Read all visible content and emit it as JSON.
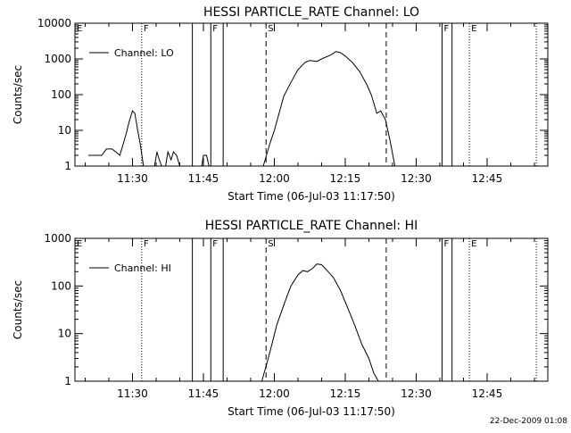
{
  "footer_timestamp": "22-Dec-2009 01:08",
  "chart_data": [
    {
      "type": "line",
      "title": "HESSI PARTICLE_RATE Channel: LO",
      "xlabel": "Start Time (06-Jul-03 11:17:50)",
      "ylabel": "Counts/sec",
      "yscale": "log",
      "ylim": [
        1,
        10000
      ],
      "xlim": [
        "11:17:50",
        "12:57:50"
      ],
      "y_ticks": [
        1,
        10,
        100,
        1000,
        10000
      ],
      "y_tick_labels": [
        "1",
        "10",
        "100",
        "1000",
        "10000"
      ],
      "x_ticks": [
        "11:30",
        "11:45",
        "12:00",
        "12:15",
        "12:30",
        "12:45"
      ],
      "legend": {
        "label": "Channel: LO",
        "placement": "top-left"
      },
      "markers": [
        {
          "time": "11:17:50",
          "style": "solid",
          "label": "E"
        },
        {
          "time": "11:31:57",
          "style": "dotted",
          "label": "F"
        },
        {
          "time": "11:42:40",
          "style": "solid",
          "label": ""
        },
        {
          "time": "11:46:34",
          "style": "solid",
          "label": "F"
        },
        {
          "time": "11:49:11",
          "style": "solid",
          "label": ""
        },
        {
          "time": "11:58:15",
          "style": "dashed",
          "label": "S"
        },
        {
          "time": "12:23:40",
          "style": "dashed",
          "label": ""
        },
        {
          "time": "12:35:28",
          "style": "solid",
          "label": "F"
        },
        {
          "time": "12:37:35",
          "style": "solid",
          "label": ""
        },
        {
          "time": "12:41:15",
          "style": "dotted",
          "label": "E"
        },
        {
          "time": "12:55:24",
          "style": "dotted",
          "label": ""
        }
      ],
      "series": [
        {
          "name": "Channel: LO",
          "segments": [
            {
              "x": [
                "11:20:40",
                "11:23:30",
                "11:24:30",
                "11:25:40",
                "11:26:30",
                "11:27:20",
                "11:28:00",
                "11:28:40",
                "11:29:20",
                "11:30:00",
                "11:30:30",
                "11:31:00",
                "11:31:40",
                "11:32:20"
              ],
              "y": [
                2,
                2,
                3,
                3,
                2.5,
                2,
                4,
                8,
                18,
                35,
                30,
                12,
                4,
                1
              ]
            },
            {
              "x": [
                "11:34:40",
                "11:35:10",
                "11:35:40",
                "11:36:10",
                "11:37:00",
                "11:37:30",
                "11:38:10",
                "11:38:40",
                "11:39:20",
                "11:40:00"
              ],
              "y": [
                1,
                2.5,
                1.5,
                1,
                1,
                2.5,
                1.5,
                2.5,
                2,
                1
              ]
            },
            {
              "x": [
                "11:44:40",
                "11:45:00",
                "11:45:40",
                "11:46:10"
              ],
              "y": [
                1,
                2,
                2,
                1
              ]
            },
            {
              "x": [
                "11:57:40",
                "11:59:00",
                "12:00:00",
                "12:01:00",
                "12:02:00",
                "12:03:30",
                "12:05:00",
                "12:06:30",
                "12:07:30",
                "12:09:00",
                "12:10:00",
                "12:12:00",
                "12:13:00",
                "12:14:00",
                "12:15:00",
                "12:16:30",
                "12:18:00",
                "12:19:30",
                "12:20:30",
                "12:21:00",
                "12:21:40",
                "12:22:30",
                "12:23:30",
                "12:24:30",
                "12:25:30"
              ],
              "y": [
                1,
                4,
                10,
                30,
                90,
                220,
                500,
                800,
                900,
                850,
                1000,
                1300,
                1600,
                1500,
                1200,
                800,
                450,
                200,
                100,
                60,
                30,
                35,
                20,
                5,
                1
              ]
            }
          ]
        }
      ]
    },
    {
      "type": "line",
      "title": "HESSI PARTICLE_RATE Channel: HI",
      "xlabel": "Start Time (06-Jul-03 11:17:50)",
      "ylabel": "Counts/sec",
      "yscale": "log",
      "ylim": [
        1,
        1000
      ],
      "xlim": [
        "11:17:50",
        "12:57:50"
      ],
      "y_ticks": [
        1,
        10,
        100,
        1000
      ],
      "y_tick_labels": [
        "1",
        "10",
        "100",
        "1000"
      ],
      "x_ticks": [
        "11:30",
        "11:45",
        "12:00",
        "12:15",
        "12:30",
        "12:45"
      ],
      "legend": {
        "label": "Channel: HI",
        "placement": "top-left"
      },
      "markers": [
        {
          "time": "11:17:50",
          "style": "solid",
          "label": "E"
        },
        {
          "time": "11:31:57",
          "style": "dotted",
          "label": "F"
        },
        {
          "time": "11:42:40",
          "style": "solid",
          "label": ""
        },
        {
          "time": "11:46:34",
          "style": "solid",
          "label": "F"
        },
        {
          "time": "11:49:11",
          "style": "solid",
          "label": ""
        },
        {
          "time": "11:58:15",
          "style": "dashed",
          "label": "S"
        },
        {
          "time": "12:23:40",
          "style": "dashed",
          "label": ""
        },
        {
          "time": "12:35:28",
          "style": "solid",
          "label": "F"
        },
        {
          "time": "12:37:35",
          "style": "solid",
          "label": ""
        },
        {
          "time": "12:41:15",
          "style": "dotted",
          "label": "E"
        },
        {
          "time": "12:55:24",
          "style": "dotted",
          "label": ""
        }
      ],
      "series": [
        {
          "name": "Channel: HI",
          "segments": [
            {
              "x": [
                "11:57:20",
                "11:58:30",
                "11:59:30",
                "12:00:30",
                "12:02:00",
                "12:03:30",
                "12:05:00",
                "12:06:00",
                "12:07:00",
                "12:08:00",
                "12:09:00",
                "12:10:00",
                "12:11:00",
                "12:12:30",
                "12:14:00",
                "12:15:30",
                "12:17:00",
                "12:18:30",
                "12:20:00",
                "12:21:00",
                "12:22:00"
              ],
              "y": [
                1,
                2.5,
                6,
                15,
                40,
                100,
                170,
                210,
                200,
                230,
                290,
                280,
                220,
                150,
                80,
                35,
                15,
                6,
                3,
                1.5,
                1
              ]
            }
          ]
        }
      ]
    }
  ]
}
